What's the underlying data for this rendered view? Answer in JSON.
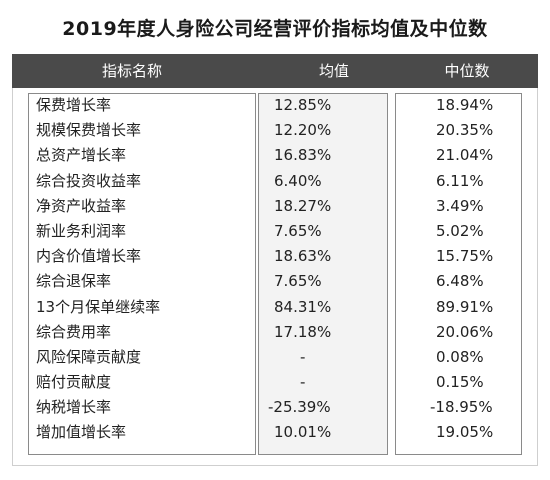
{
  "title": "2019年度人身险公司经营评价指标均值及中位数",
  "headers": {
    "name": "指标名称",
    "avg": "均值",
    "median": "中位数"
  },
  "rows": [
    {
      "name": "保费增长率",
      "avg": "12.85%",
      "median": "18.94%"
    },
    {
      "name": "规模保费增长率",
      "avg": "12.20%",
      "median": "20.35%"
    },
    {
      "name": "总资产增长率",
      "avg": "16.83%",
      "median": "21.04%"
    },
    {
      "name": "综合投资收益率",
      "avg": "6.40%",
      "median": "6.11%"
    },
    {
      "name": "净资产收益率",
      "avg": "18.27%",
      "median": "3.49%"
    },
    {
      "name": "新业务利润率",
      "avg": "7.65%",
      "median": "5.02%"
    },
    {
      "name": "内含价值增长率",
      "avg": "18.63%",
      "median": "15.75%"
    },
    {
      "name": "综合退保率",
      "avg": "7.65%",
      "median": "6.48%"
    },
    {
      "name": "13个月保单继续率",
      "avg": "84.31%",
      "median": "89.91%"
    },
    {
      "name": "综合费用率",
      "avg": "17.18%",
      "median": "20.06%"
    },
    {
      "name": "风险保障贡献度",
      "avg": "-",
      "median": "0.08%"
    },
    {
      "name": "赔付贡献度",
      "avg": "-",
      "median": "0.15%"
    },
    {
      "name": "纳税增长率",
      "avg": "-25.39%",
      "median": "-18.95%"
    },
    {
      "name": "增加值增长率",
      "avg": "10.01%",
      "median": "19.05%"
    }
  ]
}
